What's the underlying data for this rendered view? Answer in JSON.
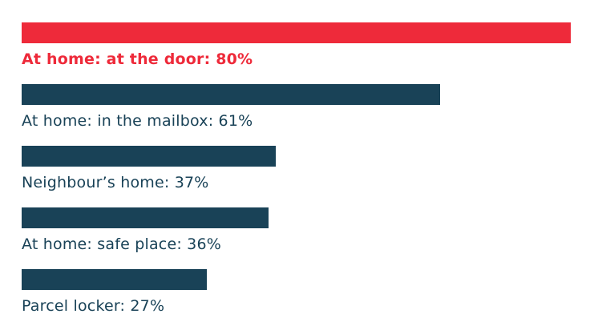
{
  "chart_data": {
    "type": "bar",
    "orientation": "horizontal",
    "categories": [
      "At home: at the door",
      "At home: in the mailbox",
      "Neighbour’s home",
      "At home: safe place",
      "Parcel locker"
    ],
    "values": [
      80,
      61,
      37,
      36,
      27
    ],
    "unit": "%",
    "labels": [
      "At home: at the door: 80%",
      "At home: in the mailbox: 61%",
      "Neighbour’s home: 37%",
      "At home: safe place: 36%",
      "Parcel locker: 27%"
    ],
    "highlight_index": 0,
    "xlim": [
      0,
      80
    ],
    "grid": false,
    "legend": "none",
    "title": "",
    "xlabel": "",
    "ylabel": ""
  },
  "colors": {
    "highlight": "#ee2a3a",
    "bar": "#194257",
    "label": "#194257"
  }
}
